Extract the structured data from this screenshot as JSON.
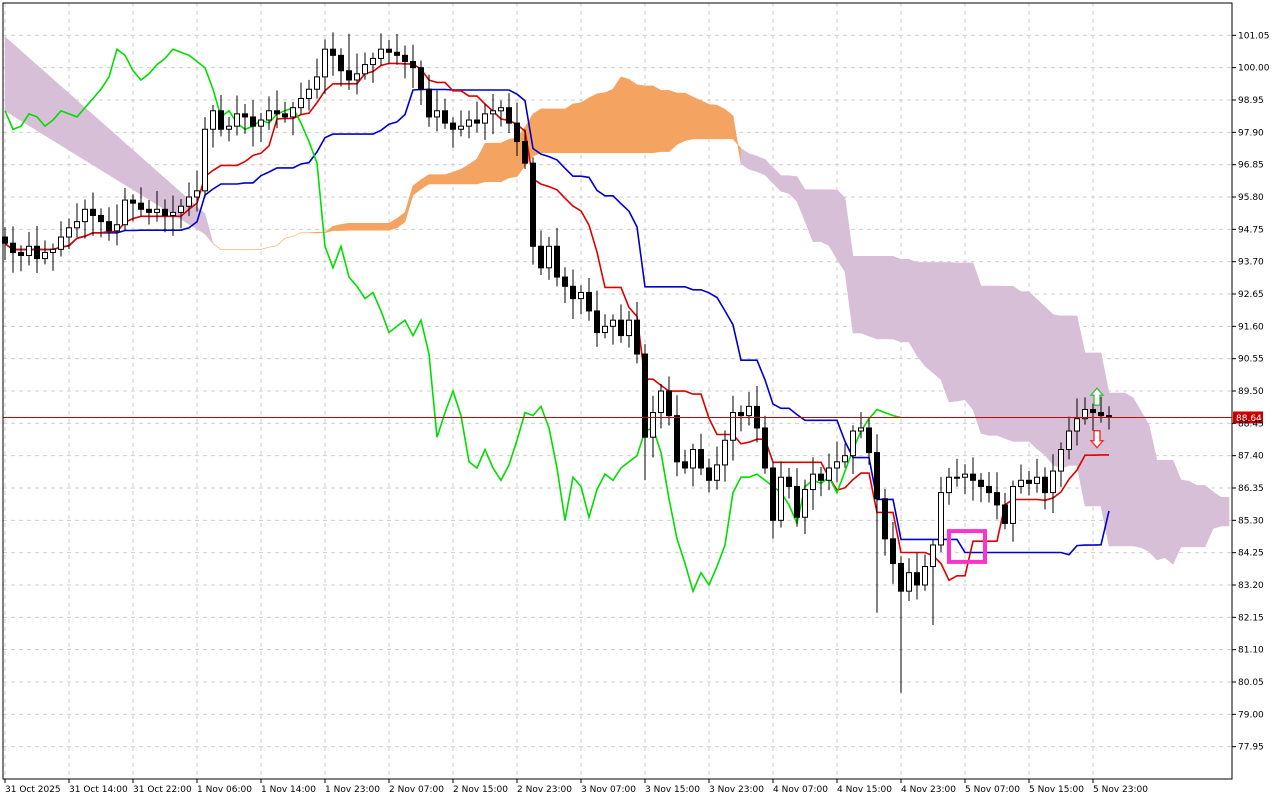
{
  "chart_data": {
    "type": "candlestick",
    "title": "",
    "current_price": 88.64,
    "current_price_label": "88.64",
    "ylim": [
      76.9,
      102.1
    ],
    "y_ticks": [
      "101.05",
      "100.00",
      "98.95",
      "97.90",
      "96.85",
      "95.80",
      "94.75",
      "93.70",
      "92.65",
      "91.60",
      "90.55",
      "89.50",
      "88.45",
      "87.40",
      "86.35",
      "85.30",
      "84.25",
      "83.20",
      "82.15",
      "81.10",
      "80.05",
      "79.00",
      "77.95"
    ],
    "x_ticks": [
      {
        "i": 0,
        "label": "31 Oct 2025"
      },
      {
        "i": 8,
        "label": "31 Oct 14:00"
      },
      {
        "i": 16,
        "label": "31 Oct 22:00"
      },
      {
        "i": 24,
        "label": "1 Nov 06:00"
      },
      {
        "i": 32,
        "label": "1 Nov 14:00"
      },
      {
        "i": 40,
        "label": "1 Nov 23:00"
      },
      {
        "i": 48,
        "label": "2 Nov 07:00"
      },
      {
        "i": 56,
        "label": "2 Nov 15:00"
      },
      {
        "i": 64,
        "label": "2 Nov 23:00"
      },
      {
        "i": 72,
        "label": "3 Nov 07:00"
      },
      {
        "i": 80,
        "label": "3 Nov 15:00"
      },
      {
        "i": 88,
        "label": "3 Nov 23:00"
      },
      {
        "i": 96,
        "label": "4 Nov 07:00"
      },
      {
        "i": 104,
        "label": "4 Nov 15:00"
      },
      {
        "i": 112,
        "label": "4 Nov 23:00"
      },
      {
        "i": 120,
        "label": "5 Nov 07:00"
      },
      {
        "i": 128,
        "label": "5 Nov 15:00"
      },
      {
        "i": 136,
        "label": "5 Nov 23:00"
      }
    ],
    "bar_count": 154,
    "closes": [
      94.3,
      94.0,
      93.9,
      94.2,
      93.8,
      94.0,
      94.1,
      94.5,
      94.8,
      95.0,
      95.4,
      95.2,
      95.0,
      94.7,
      94.9,
      95.7,
      95.6,
      95.4,
      95.3,
      95.4,
      95.2,
      95.3,
      95.5,
      95.8,
      96.0,
      98.0,
      98.6,
      98.0,
      98.1,
      98.5,
      98.4,
      98.1,
      98.3,
      98.6,
      98.5,
      98.4,
      98.7,
      99.0,
      99.3,
      99.7,
      100.6,
      100.4,
      99.9,
      99.6,
      99.8,
      100.1,
      100.3,
      100.6,
      100.5,
      100.4,
      100.2,
      100.0,
      99.3,
      98.4,
      98.6,
      98.2,
      98.0,
      98.1,
      98.3,
      98.2,
      98.5,
      98.6,
      98.7,
      98.2,
      97.6,
      96.9,
      94.2,
      93.5,
      94.2,
      93.2,
      92.9,
      92.5,
      92.7,
      92.1,
      91.4,
      91.6,
      91.8,
      91.3,
      91.8,
      90.7,
      88.0,
      88.8,
      89.5,
      88.7,
      87.2,
      87.0,
      87.6,
      87.0,
      86.6,
      87.1,
      87.9,
      88.8,
      88.7,
      89.0,
      88.3,
      87.0,
      85.3,
      86.7,
      86.4,
      85.4,
      86.3,
      86.8,
      86.6,
      87.0,
      87.2,
      87.4,
      88.2,
      88.3,
      87.5,
      86.0,
      84.7,
      83.9,
      83.0,
      83.6,
      83.2,
      83.8,
      84.5,
      86.2,
      86.7,
      86.7,
      86.8,
      86.6,
      86.4,
      86.2,
      85.8,
      85.2,
      86.4,
      86.6,
      86.5,
      86.7,
      86.2,
      86.9,
      87.6,
      88.2,
      88.6,
      88.9,
      88.8,
      88.7,
      88.64
    ],
    "series": [
      {
        "name": "tenkan",
        "color": "#dd0000"
      },
      {
        "name": "kijun",
        "color": "#0000cc"
      },
      {
        "name": "chikou",
        "color": "#00dd00"
      },
      {
        "name": "senkou_span_a",
        "color": "#f4a460"
      },
      {
        "name": "senkou_span_b",
        "color": "#d8bfd8"
      }
    ],
    "annotations": [
      {
        "type": "rectangle",
        "color": "#ff33cc",
        "x_range": [
          118,
          122.5
        ],
        "y_range": [
          83.95,
          84.95
        ]
      },
      {
        "type": "arrow-up",
        "color": "#44bb44",
        "x": 136.5,
        "y": 89.3
      },
      {
        "type": "arrow-down",
        "color": "#ee3333",
        "x": 136.5,
        "y": 87.95
      }
    ],
    "grid": true
  }
}
